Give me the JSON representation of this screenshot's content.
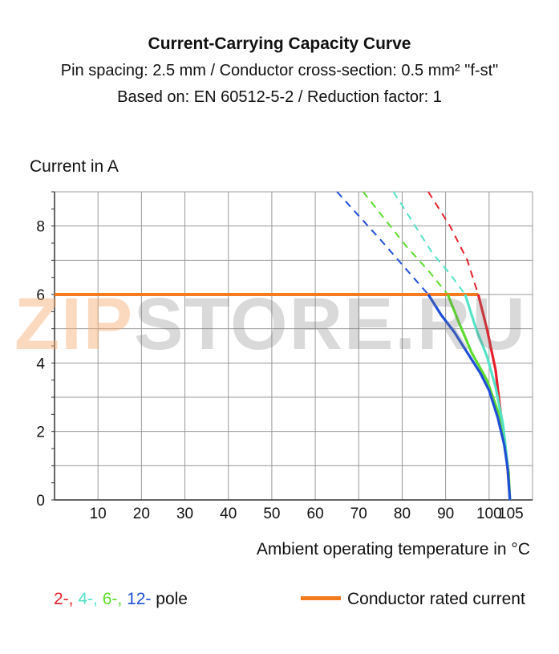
{
  "title": "Current-Carrying Capacity Curve",
  "subtitle1": "Pin spacing: 2.5 mm / Conductor cross-section: 0.5 mm² \"f-st\"",
  "subtitle2": "Based on: EN 60512-5-2 / Reduction factor: 1",
  "watermark": {
    "part1": "ZIP",
    "part2": "STORE.RU"
  },
  "legend": {
    "p2": "2-,",
    "p4": "4-,",
    "p6": "6-,",
    "p12": "12-",
    "pole": " pole",
    "rated": "Conductor rated current"
  },
  "colors": {
    "p2": "#e8202a",
    "p4": "#55e3c8",
    "p6": "#5ddc2d",
    "p12": "#1f4fd8",
    "rated": "#f47b20",
    "grid": "#9a9a9a"
  },
  "chart_data": {
    "type": "line",
    "xlabel": "Ambient operating temperature in °C",
    "ylabel": "Current in A",
    "xlim": [
      0,
      110
    ],
    "ylim": [
      0,
      9
    ],
    "xticks": [
      10,
      20,
      30,
      40,
      50,
      60,
      70,
      80,
      90,
      100,
      105
    ],
    "yticks": [
      0,
      2,
      4,
      6,
      8
    ],
    "grid": true,
    "legend_position": "bottom",
    "rated_current": {
      "name": "Conductor rated current",
      "x": [
        0,
        97.5
      ],
      "y": [
        6,
        6
      ]
    },
    "series": [
      {
        "name": "2-",
        "solid": {
          "x": [
            97.5,
            99.5,
            101.5,
            103,
            104.2,
            104.8
          ],
          "y": [
            6,
            5,
            3.8,
            2.2,
            1,
            0
          ]
        },
        "dashed": {
          "x": [
            86,
            91,
            95,
            97.5
          ],
          "y": [
            9,
            8,
            7,
            6
          ]
        }
      },
      {
        "name": "4-",
        "solid": {
          "x": [
            94.5,
            97,
            99.5,
            101.5,
            103.2,
            104.3,
            104.8
          ],
          "y": [
            6,
            5,
            4.2,
            3.3,
            2.2,
            1,
            0
          ]
        },
        "dashed": {
          "x": [
            78,
            83,
            87,
            91,
            94.5
          ],
          "y": [
            9,
            8,
            7.2,
            6.6,
            6
          ]
        }
      },
      {
        "name": "6-",
        "solid": {
          "x": [
            90.5,
            93,
            96,
            99.5,
            102,
            103.5,
            104.5,
            104.8
          ],
          "y": [
            6,
            5.2,
            4.3,
            3.5,
            2.6,
            1.6,
            0.8,
            0
          ]
        },
        "dashed": {
          "x": [
            71,
            76,
            81,
            86,
            90.5
          ],
          "y": [
            9,
            8.2,
            7.4,
            6.7,
            6
          ]
        }
      },
      {
        "name": "12-",
        "solid": {
          "x": [
            86,
            89,
            92,
            95,
            98,
            100,
            102,
            103.5,
            104.3,
            104.8
          ],
          "y": [
            6,
            5.4,
            4.9,
            4.3,
            3.7,
            3.2,
            2.4,
            1.6,
            0.9,
            0
          ]
        },
        "dashed": {
          "x": [
            65,
            70,
            75,
            80.5,
            86
          ],
          "y": [
            9,
            8.3,
            7.6,
            6.8,
            6
          ]
        }
      }
    ]
  }
}
